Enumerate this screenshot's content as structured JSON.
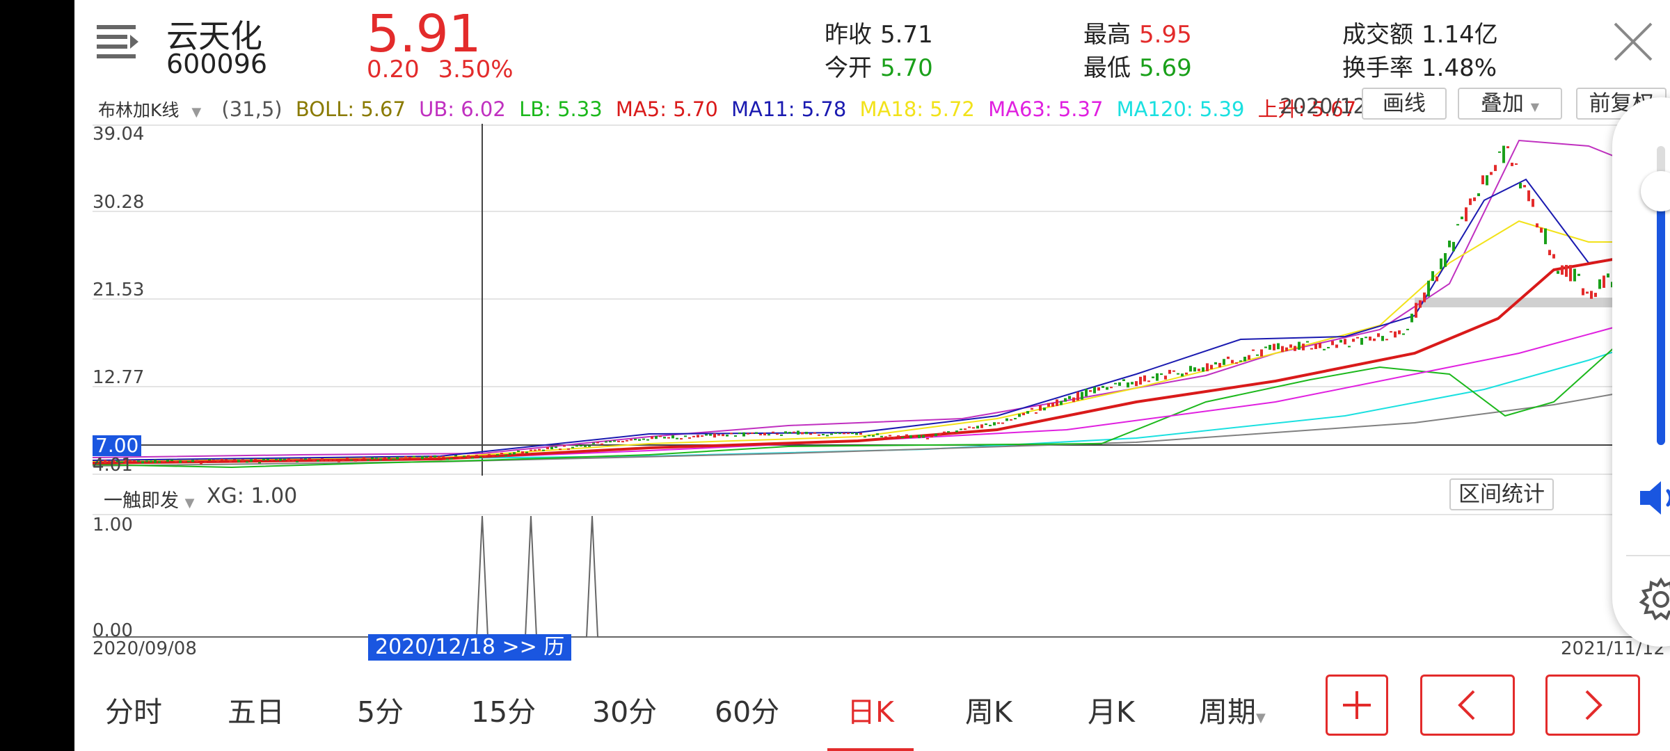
{
  "header": {
    "name": "云天化",
    "code": "600096",
    "price": "5.91",
    "change": "0.20",
    "change_pct": "3.50%",
    "prev_close_label": "昨收",
    "prev_close": "5.71",
    "open_label": "今开",
    "open": "5.70",
    "high_label": "最高",
    "high": "5.95",
    "low_label": "最低",
    "low": "5.69",
    "turnover_amt_label": "成交额",
    "turnover_amt": "1.14亿",
    "turnover_rate_label": "换手率",
    "turnover_rate": "1.48%"
  },
  "indicator_bar": {
    "selector": "布林加K线",
    "params": "(31,5)",
    "boll": "BOLL: 5.67",
    "ub": "UB: 6.02",
    "lb": "LB: 5.33",
    "ma5": "MA5: 5.70",
    "ma11": "MA11: 5.78",
    "ma18": "MA18: 5.72",
    "ma63": "MA63: 5.37",
    "ma120": "MA120: 5.39",
    "rise": "上升: 5.67",
    "date_partial": "2020/12",
    "draw_btn": "画线",
    "overlay_btn": "叠加",
    "restore_btn": "前复权"
  },
  "chart_data": {
    "type": "line",
    "y_ticks": [
      "39.04",
      "30.28",
      "21.53",
      "12.77",
      "4.01"
    ],
    "cursor_price": "7.00",
    "price_range": [
      4.01,
      39.04
    ]
  },
  "sub_chart": {
    "selector": "一触即发",
    "xg": "XG: 1.00",
    "range_btn": "区间统计",
    "y_top": "1.00",
    "y_bottom": "0.00",
    "date_start": "2020/09/08",
    "date_cursor": "2020/12/18 >> 历",
    "date_end": "2021/11/12"
  },
  "tabs": [
    "分时",
    "五日",
    "5分",
    "15分",
    "30分",
    "60分",
    "日K",
    "周K",
    "月K",
    "周期"
  ],
  "active_tab": "日K",
  "colors": {
    "up": "#e32b2b",
    "down": "#1aa01a",
    "accent": "#1a56e0"
  },
  "volume_panel": {
    "level": 0.85
  }
}
